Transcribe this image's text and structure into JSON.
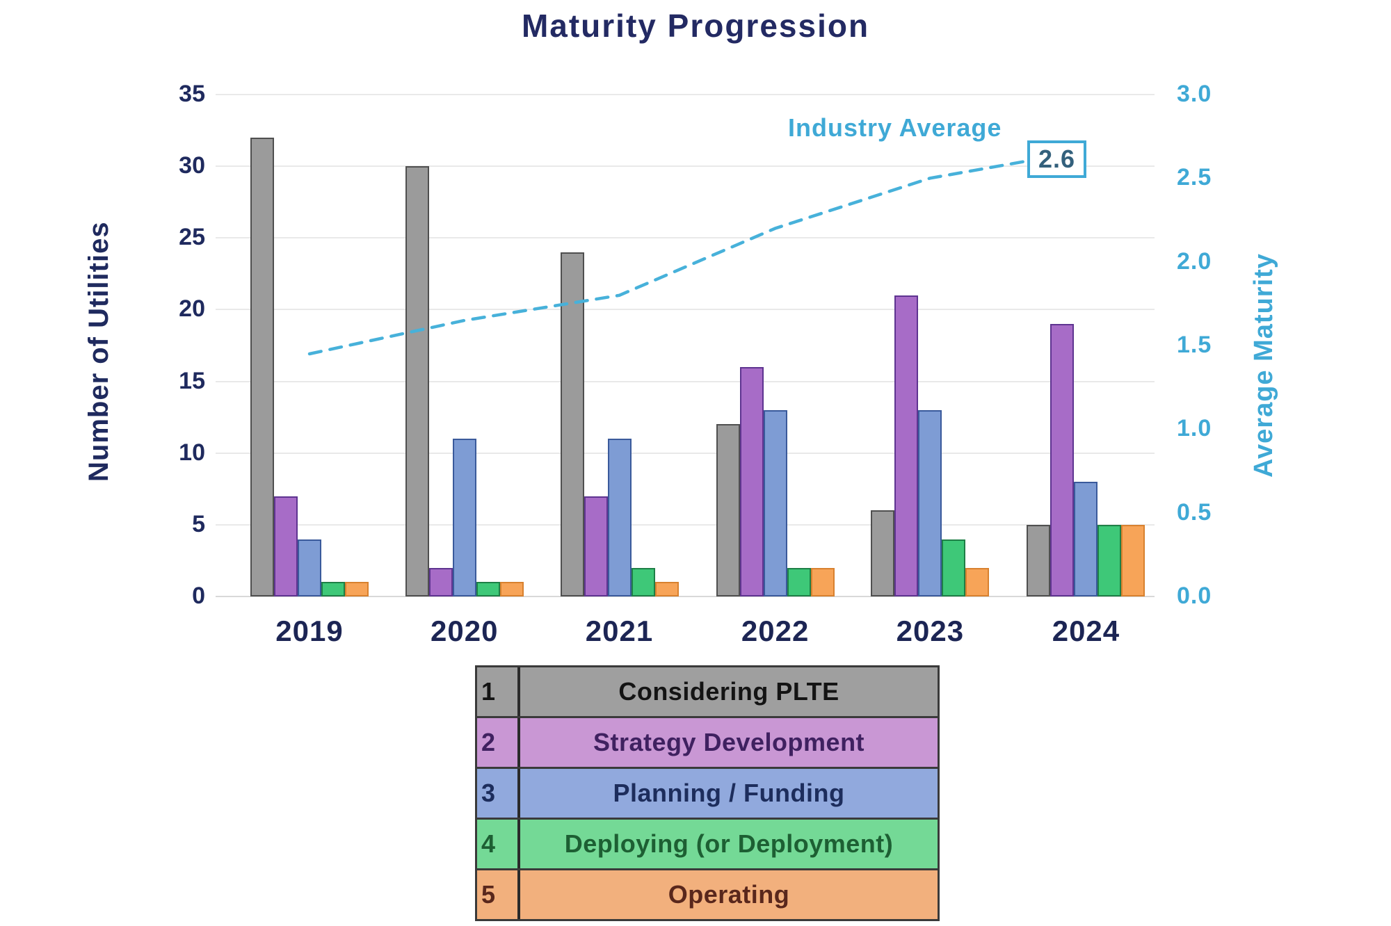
{
  "chart_data": {
    "type": "combo-bar-line",
    "title": "Maturity Progression",
    "categories": [
      "2019",
      "2020",
      "2021",
      "2022",
      "2023",
      "2024"
    ],
    "bar_series": [
      {
        "key": "1",
        "name": "Considering PLTE",
        "values": [
          32,
          30,
          24,
          12,
          6,
          5
        ],
        "fill": "#9b9b9b",
        "stroke": "#4f4f4f"
      },
      {
        "key": "2",
        "name": "Strategy Development",
        "values": [
          7,
          2,
          7,
          16,
          21,
          19
        ],
        "fill": "#a76cc7",
        "stroke": "#5e3490"
      },
      {
        "key": "3",
        "name": "Planning / Funding",
        "values": [
          4,
          11,
          11,
          13,
          13,
          8
        ],
        "fill": "#7e9cd4",
        "stroke": "#3a5a9b"
      },
      {
        "key": "4",
        "name": "Deploying (or Deployment)",
        "values": [
          1,
          1,
          2,
          2,
          4,
          5
        ],
        "fill": "#3ec878",
        "stroke": "#1e7f46"
      },
      {
        "key": "5",
        "name": "Operating",
        "values": [
          1,
          1,
          1,
          2,
          2,
          5
        ],
        "fill": "#f7a458",
        "stroke": "#d8812f"
      }
    ],
    "line_series": {
      "name": "Industry Average",
      "values": [
        1.45,
        1.65,
        1.8,
        2.2,
        2.5,
        2.6
      ],
      "color": "#47b1da",
      "end_label": "2.6"
    },
    "left_axis": {
      "label": "Number of Utilities",
      "min": 0,
      "max": 35,
      "step": 5
    },
    "right_axis": {
      "label": "Average Maturity",
      "min": 0,
      "max": 3,
      "step": 0.5
    },
    "grid": true,
    "legend_position": "bottom-table"
  },
  "legend": {
    "rows": [
      {
        "num": "1",
        "label": "Considering PLTE",
        "bg": "#9f9f9f",
        "text": "#141414"
      },
      {
        "num": "2",
        "label": "Strategy Development",
        "bg": "#c997d4",
        "text": "#3f2160"
      },
      {
        "num": "3",
        "label": "Planning / Funding",
        "bg": "#91a9dd",
        "text": "#1d2d5c"
      },
      {
        "num": "4",
        "label": "Deploying (or Deployment)",
        "bg": "#74d996",
        "text": "#1d5f33"
      },
      {
        "num": "5",
        "label": "Operating",
        "bg": "#f2b07d",
        "text": "#59271c"
      }
    ]
  }
}
